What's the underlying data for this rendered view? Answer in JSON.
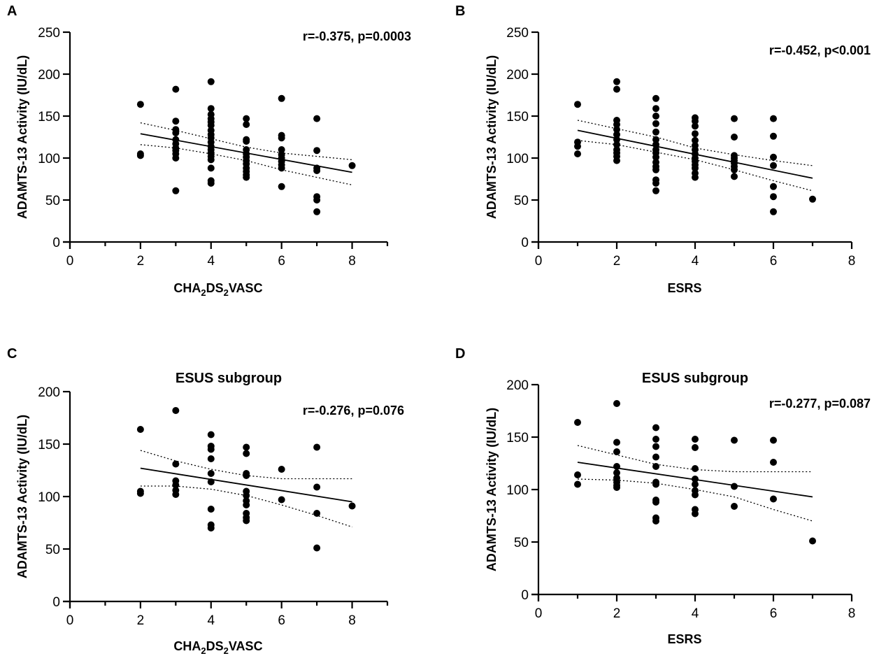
{
  "chart_data": [
    {
      "type": "scatter",
      "panel": "A",
      "title": "",
      "annotation": "r=-0.375, p=0.0003",
      "xlabel": "CHA2DS2VASC",
      "xlabel_parts": [
        {
          "t": "CHA"
        },
        {
          "t": "2",
          "sub": true
        },
        {
          "t": "DS"
        },
        {
          "t": "2",
          "sub": true
        },
        {
          "t": "VASC"
        }
      ],
      "ylabel": "ADAMTS-13 Activity (IU/dL)",
      "xlim": [
        0,
        9
      ],
      "ylim": [
        0,
        250
      ],
      "xticks": [
        0,
        2,
        4,
        6,
        8
      ],
      "yticks": [
        0,
        50,
        100,
        150,
        200,
        250
      ],
      "points": [
        [
          2,
          164
        ],
        [
          2,
          105
        ],
        [
          2,
          103
        ],
        [
          3,
          182
        ],
        [
          3,
          144
        ],
        [
          3,
          134
        ],
        [
          3,
          130
        ],
        [
          3,
          122
        ],
        [
          3,
          117
        ],
        [
          3,
          112
        ],
        [
          3,
          109
        ],
        [
          3,
          105
        ],
        [
          3,
          100
        ],
        [
          3,
          61
        ],
        [
          4,
          191
        ],
        [
          4,
          159
        ],
        [
          4,
          152
        ],
        [
          4,
          147
        ],
        [
          4,
          143
        ],
        [
          4,
          139
        ],
        [
          4,
          133
        ],
        [
          4,
          128
        ],
        [
          4,
          124
        ],
        [
          4,
          119
        ],
        [
          4,
          114
        ],
        [
          4,
          110
        ],
        [
          4,
          106
        ],
        [
          4,
          102
        ],
        [
          4,
          98
        ],
        [
          4,
          88
        ],
        [
          4,
          73
        ],
        [
          4,
          70
        ],
        [
          5,
          147
        ],
        [
          5,
          140
        ],
        [
          5,
          122
        ],
        [
          5,
          120
        ],
        [
          5,
          110
        ],
        [
          5,
          105
        ],
        [
          5,
          101
        ],
        [
          5,
          97
        ],
        [
          5,
          93
        ],
        [
          5,
          88
        ],
        [
          5,
          84
        ],
        [
          5,
          80
        ],
        [
          5,
          77
        ],
        [
          6,
          171
        ],
        [
          6,
          127
        ],
        [
          6,
          124
        ],
        [
          6,
          110
        ],
        [
          6,
          104
        ],
        [
          6,
          100
        ],
        [
          6,
          96
        ],
        [
          6,
          92
        ],
        [
          6,
          88
        ],
        [
          6,
          66
        ],
        [
          7,
          147
        ],
        [
          7,
          109
        ],
        [
          7,
          88
        ],
        [
          7,
          85
        ],
        [
          7,
          54
        ],
        [
          7,
          50
        ],
        [
          7,
          36
        ],
        [
          8,
          91
        ]
      ],
      "fit": {
        "x": [
          2,
          8
        ],
        "y": [
          129,
          83
        ]
      },
      "ci_upper": [
        [
          2,
          142
        ],
        [
          3,
          133
        ],
        [
          4,
          123
        ],
        [
          5,
          113
        ],
        [
          6,
          106
        ],
        [
          7,
          102
        ],
        [
          8,
          98
        ]
      ],
      "ci_lower": [
        [
          2,
          116
        ],
        [
          3,
          112
        ],
        [
          4,
          105
        ],
        [
          5,
          97
        ],
        [
          6,
          86
        ],
        [
          7,
          77
        ],
        [
          8,
          68
        ]
      ]
    },
    {
      "type": "scatter",
      "panel": "B",
      "title": "",
      "annotation": "r=-0.452, p<0.001",
      "xlabel": "ESRS",
      "xlabel_parts": [
        {
          "t": "ESRS"
        }
      ],
      "ylabel": "ADAMTS-13 Activity (IU/dL)",
      "xlim": [
        0,
        8
      ],
      "ylim": [
        0,
        250
      ],
      "xticks": [
        0,
        2,
        4,
        6,
        8
      ],
      "yticks": [
        0,
        50,
        100,
        150,
        200,
        250
      ],
      "points": [
        [
          1,
          164
        ],
        [
          1,
          119
        ],
        [
          1,
          114
        ],
        [
          1,
          105
        ],
        [
          2,
          191
        ],
        [
          2,
          182
        ],
        [
          2,
          145
        ],
        [
          2,
          140
        ],
        [
          2,
          134
        ],
        [
          2,
          128
        ],
        [
          2,
          122
        ],
        [
          2,
          116
        ],
        [
          2,
          110
        ],
        [
          2,
          106
        ],
        [
          2,
          102
        ],
        [
          2,
          97
        ],
        [
          3,
          171
        ],
        [
          3,
          159
        ],
        [
          3,
          150
        ],
        [
          3,
          141
        ],
        [
          3,
          131
        ],
        [
          3,
          122
        ],
        [
          3,
          116
        ],
        [
          3,
          110
        ],
        [
          3,
          106
        ],
        [
          3,
          101
        ],
        [
          3,
          95
        ],
        [
          3,
          90
        ],
        [
          3,
          86
        ],
        [
          3,
          74
        ],
        [
          3,
          70
        ],
        [
          3,
          61
        ],
        [
          4,
          148
        ],
        [
          4,
          144
        ],
        [
          4,
          138
        ],
        [
          4,
          129
        ],
        [
          4,
          121
        ],
        [
          4,
          115
        ],
        [
          4,
          110
        ],
        [
          4,
          105
        ],
        [
          4,
          100
        ],
        [
          4,
          96
        ],
        [
          4,
          92
        ],
        [
          4,
          88
        ],
        [
          4,
          82
        ],
        [
          4,
          77
        ],
        [
          5,
          147
        ],
        [
          5,
          125
        ],
        [
          5,
          103
        ],
        [
          5,
          100
        ],
        [
          5,
          97
        ],
        [
          5,
          94
        ],
        [
          5,
          90
        ],
        [
          5,
          86
        ],
        [
          5,
          78
        ],
        [
          6,
          147
        ],
        [
          6,
          126
        ],
        [
          6,
          101
        ],
        [
          6,
          91
        ],
        [
          6,
          66
        ],
        [
          6,
          54
        ],
        [
          6,
          36
        ],
        [
          7,
          51
        ]
      ],
      "fit": {
        "x": [
          1,
          7
        ],
        "y": [
          133,
          76
        ]
      },
      "ci_upper": [
        [
          1,
          145
        ],
        [
          2,
          135
        ],
        [
          3,
          125
        ],
        [
          4,
          112
        ],
        [
          5,
          104
        ],
        [
          6,
          97
        ],
        [
          7,
          91
        ]
      ],
      "ci_lower": [
        [
          1,
          121
        ],
        [
          2,
          116
        ],
        [
          3,
          107
        ],
        [
          4,
          98
        ],
        [
          5,
          86
        ],
        [
          6,
          73
        ],
        [
          7,
          61
        ]
      ]
    },
    {
      "type": "scatter",
      "panel": "C",
      "title": "ESUS subgroup",
      "annotation": "r=-0.276, p=0.076",
      "xlabel": "CHA2DS2VASC",
      "xlabel_parts": [
        {
          "t": "CHA"
        },
        {
          "t": "2",
          "sub": true
        },
        {
          "t": "DS"
        },
        {
          "t": "2",
          "sub": true
        },
        {
          "t": "VASC"
        }
      ],
      "ylabel": "ADAMTS-13 Activity (IU/dL)",
      "xlim": [
        0,
        9
      ],
      "ylim": [
        0,
        200
      ],
      "xticks": [
        0,
        2,
        4,
        6,
        8
      ],
      "yticks": [
        0,
        50,
        100,
        150,
        200
      ],
      "points": [
        [
          2,
          164
        ],
        [
          2,
          105
        ],
        [
          2,
          103
        ],
        [
          3,
          182
        ],
        [
          3,
          131
        ],
        [
          3,
          115
        ],
        [
          3,
          111
        ],
        [
          3,
          106
        ],
        [
          3,
          102
        ],
        [
          4,
          159
        ],
        [
          4,
          148
        ],
        [
          4,
          145
        ],
        [
          4,
          136
        ],
        [
          4,
          122
        ],
        [
          4,
          114
        ],
        [
          4,
          88
        ],
        [
          4,
          73
        ],
        [
          4,
          70
        ],
        [
          5,
          147
        ],
        [
          5,
          141
        ],
        [
          5,
          122
        ],
        [
          5,
          120
        ],
        [
          5,
          105
        ],
        [
          5,
          101
        ],
        [
          5,
          96
        ],
        [
          5,
          92
        ],
        [
          5,
          84
        ],
        [
          5,
          80
        ],
        [
          5,
          77
        ],
        [
          6,
          126
        ],
        [
          6,
          97
        ],
        [
          7,
          147
        ],
        [
          7,
          109
        ],
        [
          7,
          84
        ],
        [
          7,
          51
        ],
        [
          8,
          91
        ]
      ],
      "fit": {
        "x": [
          2,
          8
        ],
        "y": [
          127,
          95
        ]
      },
      "ci_upper": [
        [
          2,
          144
        ],
        [
          3,
          134
        ],
        [
          4,
          126
        ],
        [
          5,
          120
        ],
        [
          6,
          117
        ],
        [
          7,
          117
        ],
        [
          8,
          117
        ]
      ],
      "ci_lower": [
        [
          2,
          110
        ],
        [
          3,
          110
        ],
        [
          4,
          107
        ],
        [
          5,
          101
        ],
        [
          6,
          92
        ],
        [
          7,
          82
        ],
        [
          8,
          71
        ]
      ]
    },
    {
      "type": "scatter",
      "panel": "D",
      "title": "ESUS subgroup",
      "annotation": "r=-0.277, p=0.087",
      "xlabel": "ESRS",
      "xlabel_parts": [
        {
          "t": "ESRS"
        }
      ],
      "ylabel": "ADAMTS-13 Activity (IU/dL)",
      "xlim": [
        0,
        8
      ],
      "ylim": [
        0,
        200
      ],
      "xticks": [
        0,
        2,
        4,
        6,
        8
      ],
      "yticks": [
        0,
        50,
        100,
        150,
        200
      ],
      "points": [
        [
          1,
          164
        ],
        [
          1,
          114
        ],
        [
          1,
          105
        ],
        [
          2,
          182
        ],
        [
          2,
          145
        ],
        [
          2,
          136
        ],
        [
          2,
          122
        ],
        [
          2,
          116
        ],
        [
          2,
          111
        ],
        [
          2,
          107
        ],
        [
          2,
          104
        ],
        [
          2,
          102
        ],
        [
          3,
          159
        ],
        [
          3,
          148
        ],
        [
          3,
          141
        ],
        [
          3,
          131
        ],
        [
          3,
          122
        ],
        [
          3,
          107
        ],
        [
          3,
          105
        ],
        [
          3,
          90
        ],
        [
          3,
          88
        ],
        [
          3,
          73
        ],
        [
          3,
          70
        ],
        [
          4,
          148
        ],
        [
          4,
          140
        ],
        [
          4,
          120
        ],
        [
          4,
          110
        ],
        [
          4,
          105
        ],
        [
          4,
          99
        ],
        [
          4,
          95
        ],
        [
          4,
          81
        ],
        [
          4,
          77
        ],
        [
          5,
          147
        ],
        [
          5,
          103
        ],
        [
          5,
          84
        ],
        [
          6,
          147
        ],
        [
          6,
          126
        ],
        [
          6,
          91
        ],
        [
          7,
          51
        ]
      ],
      "fit": {
        "x": [
          1,
          7
        ],
        "y": [
          126,
          93
        ]
      },
      "ci_upper": [
        [
          1,
          142
        ],
        [
          2,
          133
        ],
        [
          3,
          124
        ],
        [
          4,
          119
        ],
        [
          5,
          117
        ],
        [
          6,
          117
        ],
        [
          7,
          117
        ]
      ],
      "ci_lower": [
        [
          1,
          110
        ],
        [
          2,
          109
        ],
        [
          3,
          106
        ],
        [
          4,
          100
        ],
        [
          5,
          93
        ],
        [
          6,
          81
        ],
        [
          7,
          70
        ]
      ]
    }
  ]
}
